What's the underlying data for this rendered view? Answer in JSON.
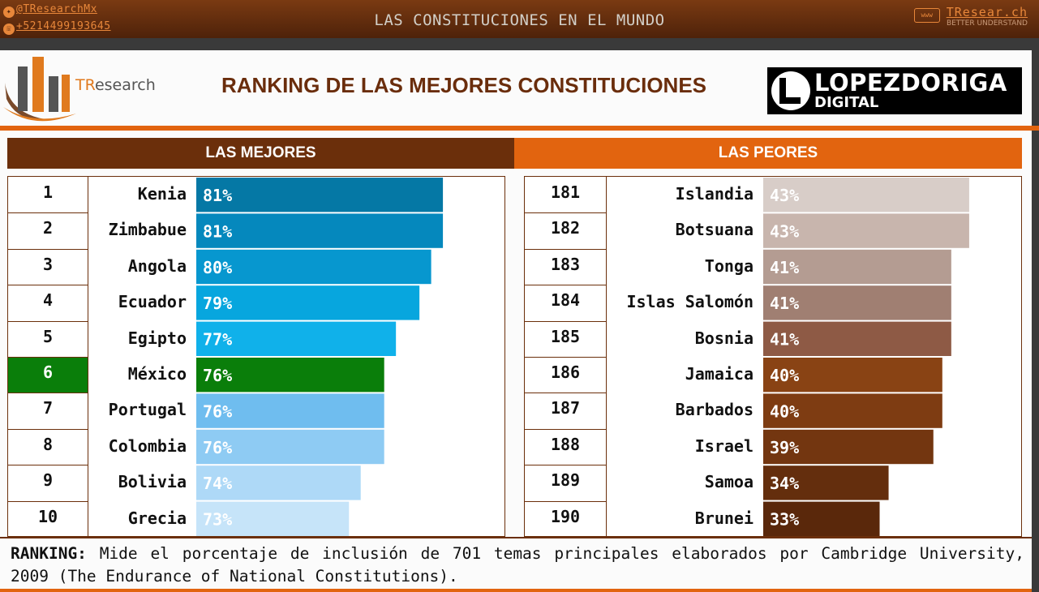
{
  "header": {
    "twitter": "@TResearchMx",
    "phone": "+5214499193645",
    "title": "LAS CONSTITUCIONES EN EL MUNDO",
    "brand_url": "TResear.ch",
    "brand_tagline": "BETTER UNDERSTAND",
    "brand_icon": "www"
  },
  "logo": {
    "name_part1": "TR",
    "name_part2": "esearch"
  },
  "heading": "RANKING DE LAS MEJORES CONSTITUCIONES",
  "partner_logo": {
    "line1": "LOPEZDORIGA",
    "line2": "DIGITAL"
  },
  "sections": {
    "best_label": "LAS MEJORES",
    "worst_label": "LAS PEORES"
  },
  "chart_data": [
    {
      "type": "bar",
      "orientation": "horizontal",
      "title": "LAS MEJORES",
      "ranks": [
        "1",
        "2",
        "3",
        "4",
        "5",
        "6",
        "7",
        "8",
        "9",
        "10"
      ],
      "categories": [
        "Kenia",
        "Zimbabue",
        "Angola",
        "Ecuador",
        "Egipto",
        "México",
        "Portugal",
        "Colombia",
        "Bolivia",
        "Grecia"
      ],
      "values": [
        81,
        81,
        80,
        79,
        77,
        76,
        76,
        76,
        74,
        73
      ],
      "labels": [
        "81%",
        "81%",
        "80%",
        "79%",
        "77%",
        "76%",
        "76%",
        "76%",
        "74%",
        "73%"
      ],
      "colors": [
        "#0578a5",
        "#0588bd",
        "#0797cf",
        "#07a6de",
        "#10b1ea",
        "#0a7e0a",
        "#6fbdef",
        "#8ecbf3",
        "#aed9f7",
        "#c6e4f9"
      ],
      "label_colors": [
        "#ffffff",
        "#ffffff",
        "#ffffff",
        "#ffffff",
        "#ffffff",
        "#ffffff",
        "#ffffff",
        "#ffffff",
        "#ffffff",
        "#ffffff"
      ],
      "highlight": "México",
      "highlight_color": "#0a7e0a",
      "xlim": [
        60,
        85
      ]
    },
    {
      "type": "bar",
      "orientation": "horizontal",
      "title": "LAS PEORES",
      "ranks": [
        "181",
        "182",
        "183",
        "184",
        "185",
        "186",
        "187",
        "188",
        "189",
        "190"
      ],
      "categories": [
        "Islandia",
        "Botsuana",
        "Tonga",
        "Islas Salomón",
        "Bosnia",
        "Jamaica",
        "Barbados",
        "Israel",
        "Samoa",
        "Brunei"
      ],
      "values": [
        43,
        43,
        41,
        41,
        41,
        40,
        40,
        39,
        34,
        33
      ],
      "labels": [
        "43%",
        "43%",
        "41%",
        "41%",
        "41%",
        "40%",
        "40%",
        "39%",
        "34%",
        "33%"
      ],
      "colors": [
        "#d8cdc8",
        "#c8b5ad",
        "#b49c92",
        "#a07f72",
        "#8e5a45",
        "#894314",
        "#7e3c12",
        "#733610",
        "#642e0d",
        "#5a280b"
      ],
      "label_colors": [
        "#ffffff",
        "#ffffff",
        "#ffffff",
        "#ffffff",
        "#ffffff",
        "#ffffff",
        "#ffffff",
        "#ffffff",
        "#ffffff",
        "#ffffff"
      ],
      "xlim": [
        20,
        45
      ]
    }
  ],
  "note": {
    "label": "RANKING:",
    "text": " Mide el porcentaje de inclusión de 701 temas principales elaborados por  Cambridge University, 2009 (The Endurance of National Constitutions)."
  }
}
